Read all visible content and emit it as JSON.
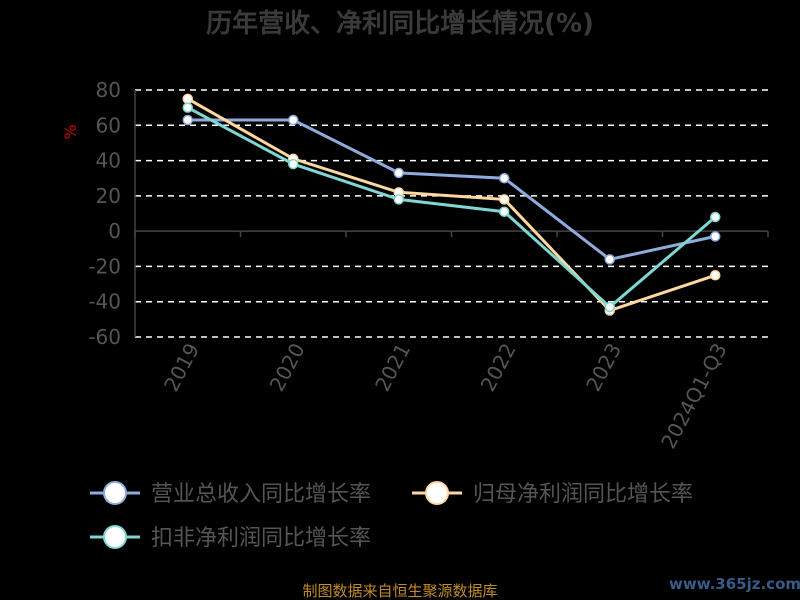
{
  "chart_data": {
    "type": "line",
    "title": "历年营收、净利同比增长情况(%)",
    "ylabel": "%",
    "xlabel": "",
    "categories": [
      "2019",
      "2020",
      "2021",
      "2022",
      "2023",
      "2024Q1-Q3"
    ],
    "ylim": [
      -60,
      80
    ],
    "yticks": [
      80,
      60,
      40,
      20,
      0,
      -20,
      -40,
      -60
    ],
    "grid": true,
    "legend_position": "bottom",
    "series": [
      {
        "name": "营业总收入同比增长率",
        "color": "#8faadc",
        "values": [
          63,
          63,
          33,
          30,
          -16,
          -3
        ]
      },
      {
        "name": "归母净利润同比增长率",
        "color": "#ffd8a0",
        "values": [
          75,
          41,
          22,
          18,
          -45,
          -25
        ]
      },
      {
        "name": "扣非净利润同比增长率",
        "color": "#7fd6d2",
        "values": [
          70,
          38,
          18,
          11,
          -43,
          8
        ]
      }
    ]
  },
  "footer": {
    "source": "制图数据来自恒生聚源数据库",
    "watermark": "www.365jz.com"
  }
}
